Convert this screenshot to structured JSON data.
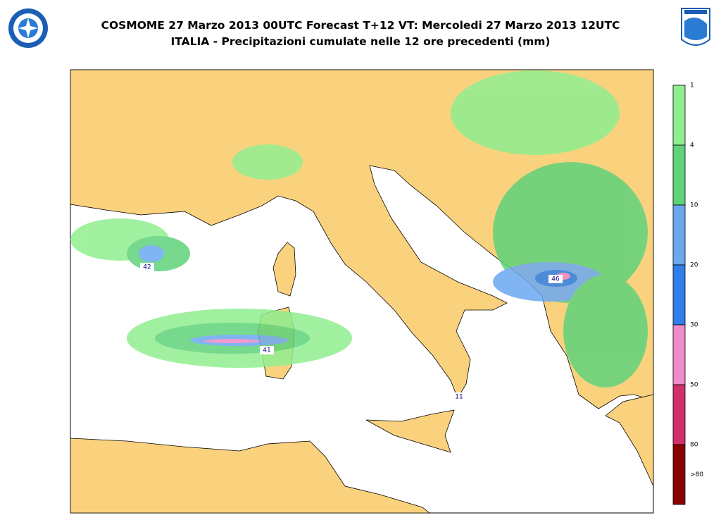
{
  "header": {
    "title": "COSMOME 27 Marzo 2013 00UTC Forecast T+12 VT: Mercoledi 27 Marzo 2013 12UTC",
    "subtitle": "ITALIA - Precipitazioni cumulate nelle 12 ore precedenti (mm)"
  },
  "map": {
    "max_labels": [
      "42",
      "41",
      "46",
      "11"
    ]
  },
  "legend": {
    "labels": [
      "1",
      "4",
      "10",
      "20",
      "30",
      "50",
      "80",
      ">80"
    ],
    "colors": [
      "#90ee90",
      "#5fd37a",
      "#6aa8f0",
      "#2f7fe8",
      "#f08ac8",
      "#d2306a",
      "#8b0000"
    ]
  }
}
